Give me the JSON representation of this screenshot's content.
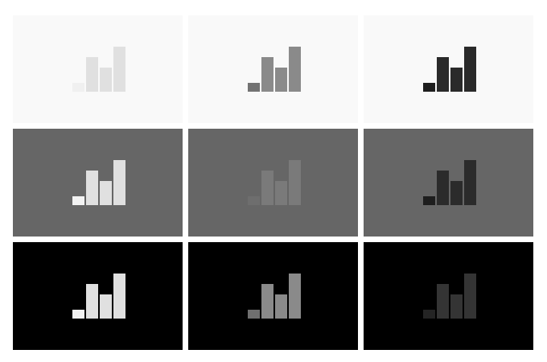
{
  "bar_levels": [
    0.25,
    1.0,
    0.7,
    1.3
  ],
  "tiles": [
    {
      "background": "#f9f9f9",
      "bar_fill": "#f0f0f0",
      "bar_fill_rest": "#e0e0e0",
      "icon": "signal-bars-icon"
    },
    {
      "background": "#f9f9f9",
      "bar_fill": "#737373",
      "bar_fill_rest": "#8a8a8a",
      "icon": "signal-bars-icon"
    },
    {
      "background": "#f9f9f9",
      "bar_fill": "#1e1e1e",
      "bar_fill_rest": "#2a2a2a",
      "icon": "signal-bars-icon"
    },
    {
      "background": "#666666",
      "bar_fill": "#f2f2f2",
      "bar_fill_rest": "#e0e0e0",
      "icon": "signal-bars-icon"
    },
    {
      "background": "#666666",
      "bar_fill": "#6e6e6e",
      "bar_fill_rest": "#7a7a7a",
      "icon": "signal-bars-icon"
    },
    {
      "background": "#666666",
      "bar_fill": "#1e1e1e",
      "bar_fill_rest": "#2b2b2b",
      "icon": "signal-bars-icon"
    },
    {
      "background": "#000000",
      "bar_fill": "#f2f2f2",
      "bar_fill_rest": "#e0e0e0",
      "icon": "signal-bars-icon"
    },
    {
      "background": "#000000",
      "bar_fill": "#6f6f6f",
      "bar_fill_rest": "#8a8a8a",
      "icon": "signal-bars-icon"
    },
    {
      "background": "#000000",
      "bar_fill": "#242424",
      "bar_fill_rest": "#343434",
      "icon": "signal-bars-icon"
    }
  ]
}
